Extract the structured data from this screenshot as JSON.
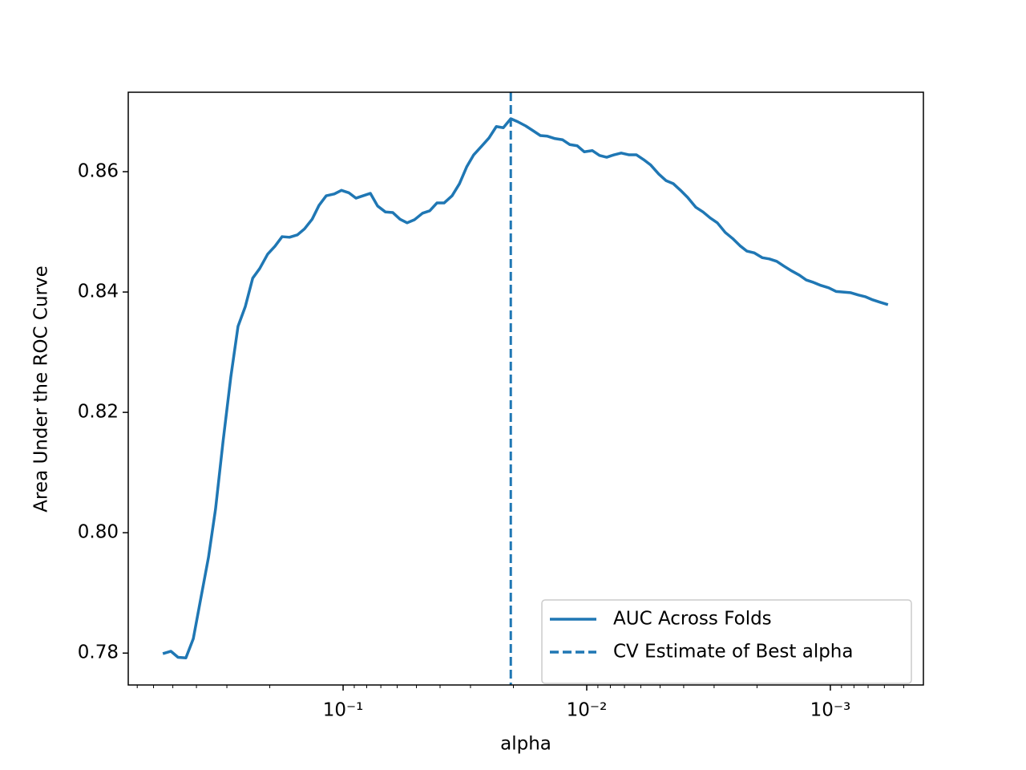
{
  "chart_data": {
    "type": "line",
    "x_label": "alpha",
    "y_label": "Area Under the ROC Curve",
    "xscale": "log",
    "xlim": [
      0.762,
      0.000415
    ],
    "ylim": [
      0.7747,
      0.8732
    ],
    "xticks": [
      {
        "value": 0.1,
        "label": "10⁻¹"
      },
      {
        "value": 0.01,
        "label": "10⁻²"
      },
      {
        "value": 0.001,
        "label": "10⁻³"
      }
    ],
    "xminorticks": [
      0.7,
      0.6,
      0.5,
      0.4,
      0.3,
      0.2,
      0.09,
      0.08,
      0.07,
      0.06,
      0.05,
      0.04,
      0.03,
      0.02,
      0.009,
      0.008,
      0.007,
      0.006,
      0.005,
      0.004,
      0.003,
      0.002,
      0.0009,
      0.0008,
      0.0007,
      0.0006,
      0.0005
    ],
    "yticks": [
      0.78,
      {
        "value": 0.8,
        "label": "0.80"
      },
      0.82,
      0.84,
      0.86
    ],
    "legend": "lower right",
    "x": [
      0.5495,
      0.509,
      0.476,
      0.442,
      0.412,
      0.385,
      0.357,
      0.334,
      0.311,
      0.289,
      0.27,
      0.252,
      0.235,
      0.22,
      0.204,
      0.1905,
      0.178,
      0.166,
      0.154,
      0.144,
      0.134,
      0.1256,
      0.1173,
      0.1087,
      0.1016,
      0.0948,
      0.0886,
      0.0828,
      0.0773,
      0.0722,
      0.067,
      0.0625,
      0.0584,
      0.0546,
      0.051,
      0.0472,
      0.0441,
      0.0412,
      0.0385,
      0.0357,
      0.0333,
      0.0311,
      0.0291,
      0.0272,
      0.0252,
      0.0235,
      0.022,
      0.0205,
      0.0192,
      0.0178,
      0.0166,
      0.0155,
      0.0145,
      0.0135,
      0.01256,
      0.01173,
      0.01094,
      0.01023,
      0.00948,
      0.00886,
      0.00828,
      0.00773,
      0.00722,
      0.0067,
      0.00625,
      0.00584,
      0.00546,
      0.00506,
      0.00472,
      0.00441,
      0.00412,
      0.00385,
      0.00357,
      0.00333,
      0.00311,
      0.00291,
      0.0027,
      0.00252,
      0.00235,
      0.0022,
      0.00205,
      0.0019,
      0.00178,
      0.00166,
      0.00155,
      0.00144,
      0.00134,
      0.001256,
      0.001173,
      0.001094,
      0.001016,
      0.000948,
      0.000886,
      0.000828,
      0.000767,
      0.000716,
      0.00067,
      0.000625,
      0.00058
    ],
    "series": [
      {
        "name": "AUC Across Folds",
        "color": "#1f77b4",
        "values": [
          0.7799,
          0.7803,
          0.7793,
          0.7792,
          0.7824,
          0.7888,
          0.7959,
          0.8039,
          0.8152,
          0.8259,
          0.8343,
          0.8376,
          0.8423,
          0.8439,
          0.8463,
          0.8476,
          0.8492,
          0.8491,
          0.8495,
          0.8505,
          0.8521,
          0.8544,
          0.856,
          0.8563,
          0.8569,
          0.8565,
          0.8556,
          0.856,
          0.8564,
          0.8543,
          0.8533,
          0.8532,
          0.8521,
          0.8515,
          0.852,
          0.8531,
          0.8535,
          0.8548,
          0.8548,
          0.856,
          0.858,
          0.8608,
          0.8628,
          0.8641,
          0.8656,
          0.8675,
          0.8673,
          0.8688,
          0.8683,
          0.8676,
          0.8668,
          0.866,
          0.8659,
          0.8655,
          0.8653,
          0.8645,
          0.8643,
          0.8633,
          0.8635,
          0.8627,
          0.8624,
          0.8628,
          0.8631,
          0.8628,
          0.8628,
          0.862,
          0.8611,
          0.8596,
          0.8585,
          0.858,
          0.8569,
          0.8557,
          0.8541,
          0.8533,
          0.8523,
          0.8515,
          0.8499,
          0.8489,
          0.8477,
          0.8468,
          0.8465,
          0.8457,
          0.8455,
          0.8451,
          0.8443,
          0.8435,
          0.8428,
          0.842,
          0.8416,
          0.8411,
          0.8407,
          0.8401,
          0.84,
          0.8399,
          0.8395,
          0.8392,
          0.8387,
          0.8383,
          0.8379
        ]
      }
    ],
    "vlines": [
      {
        "name": "CV Estimate of Best alpha",
        "x": 0.0205,
        "color": "#1f77b4",
        "style": "dashed"
      }
    ]
  }
}
